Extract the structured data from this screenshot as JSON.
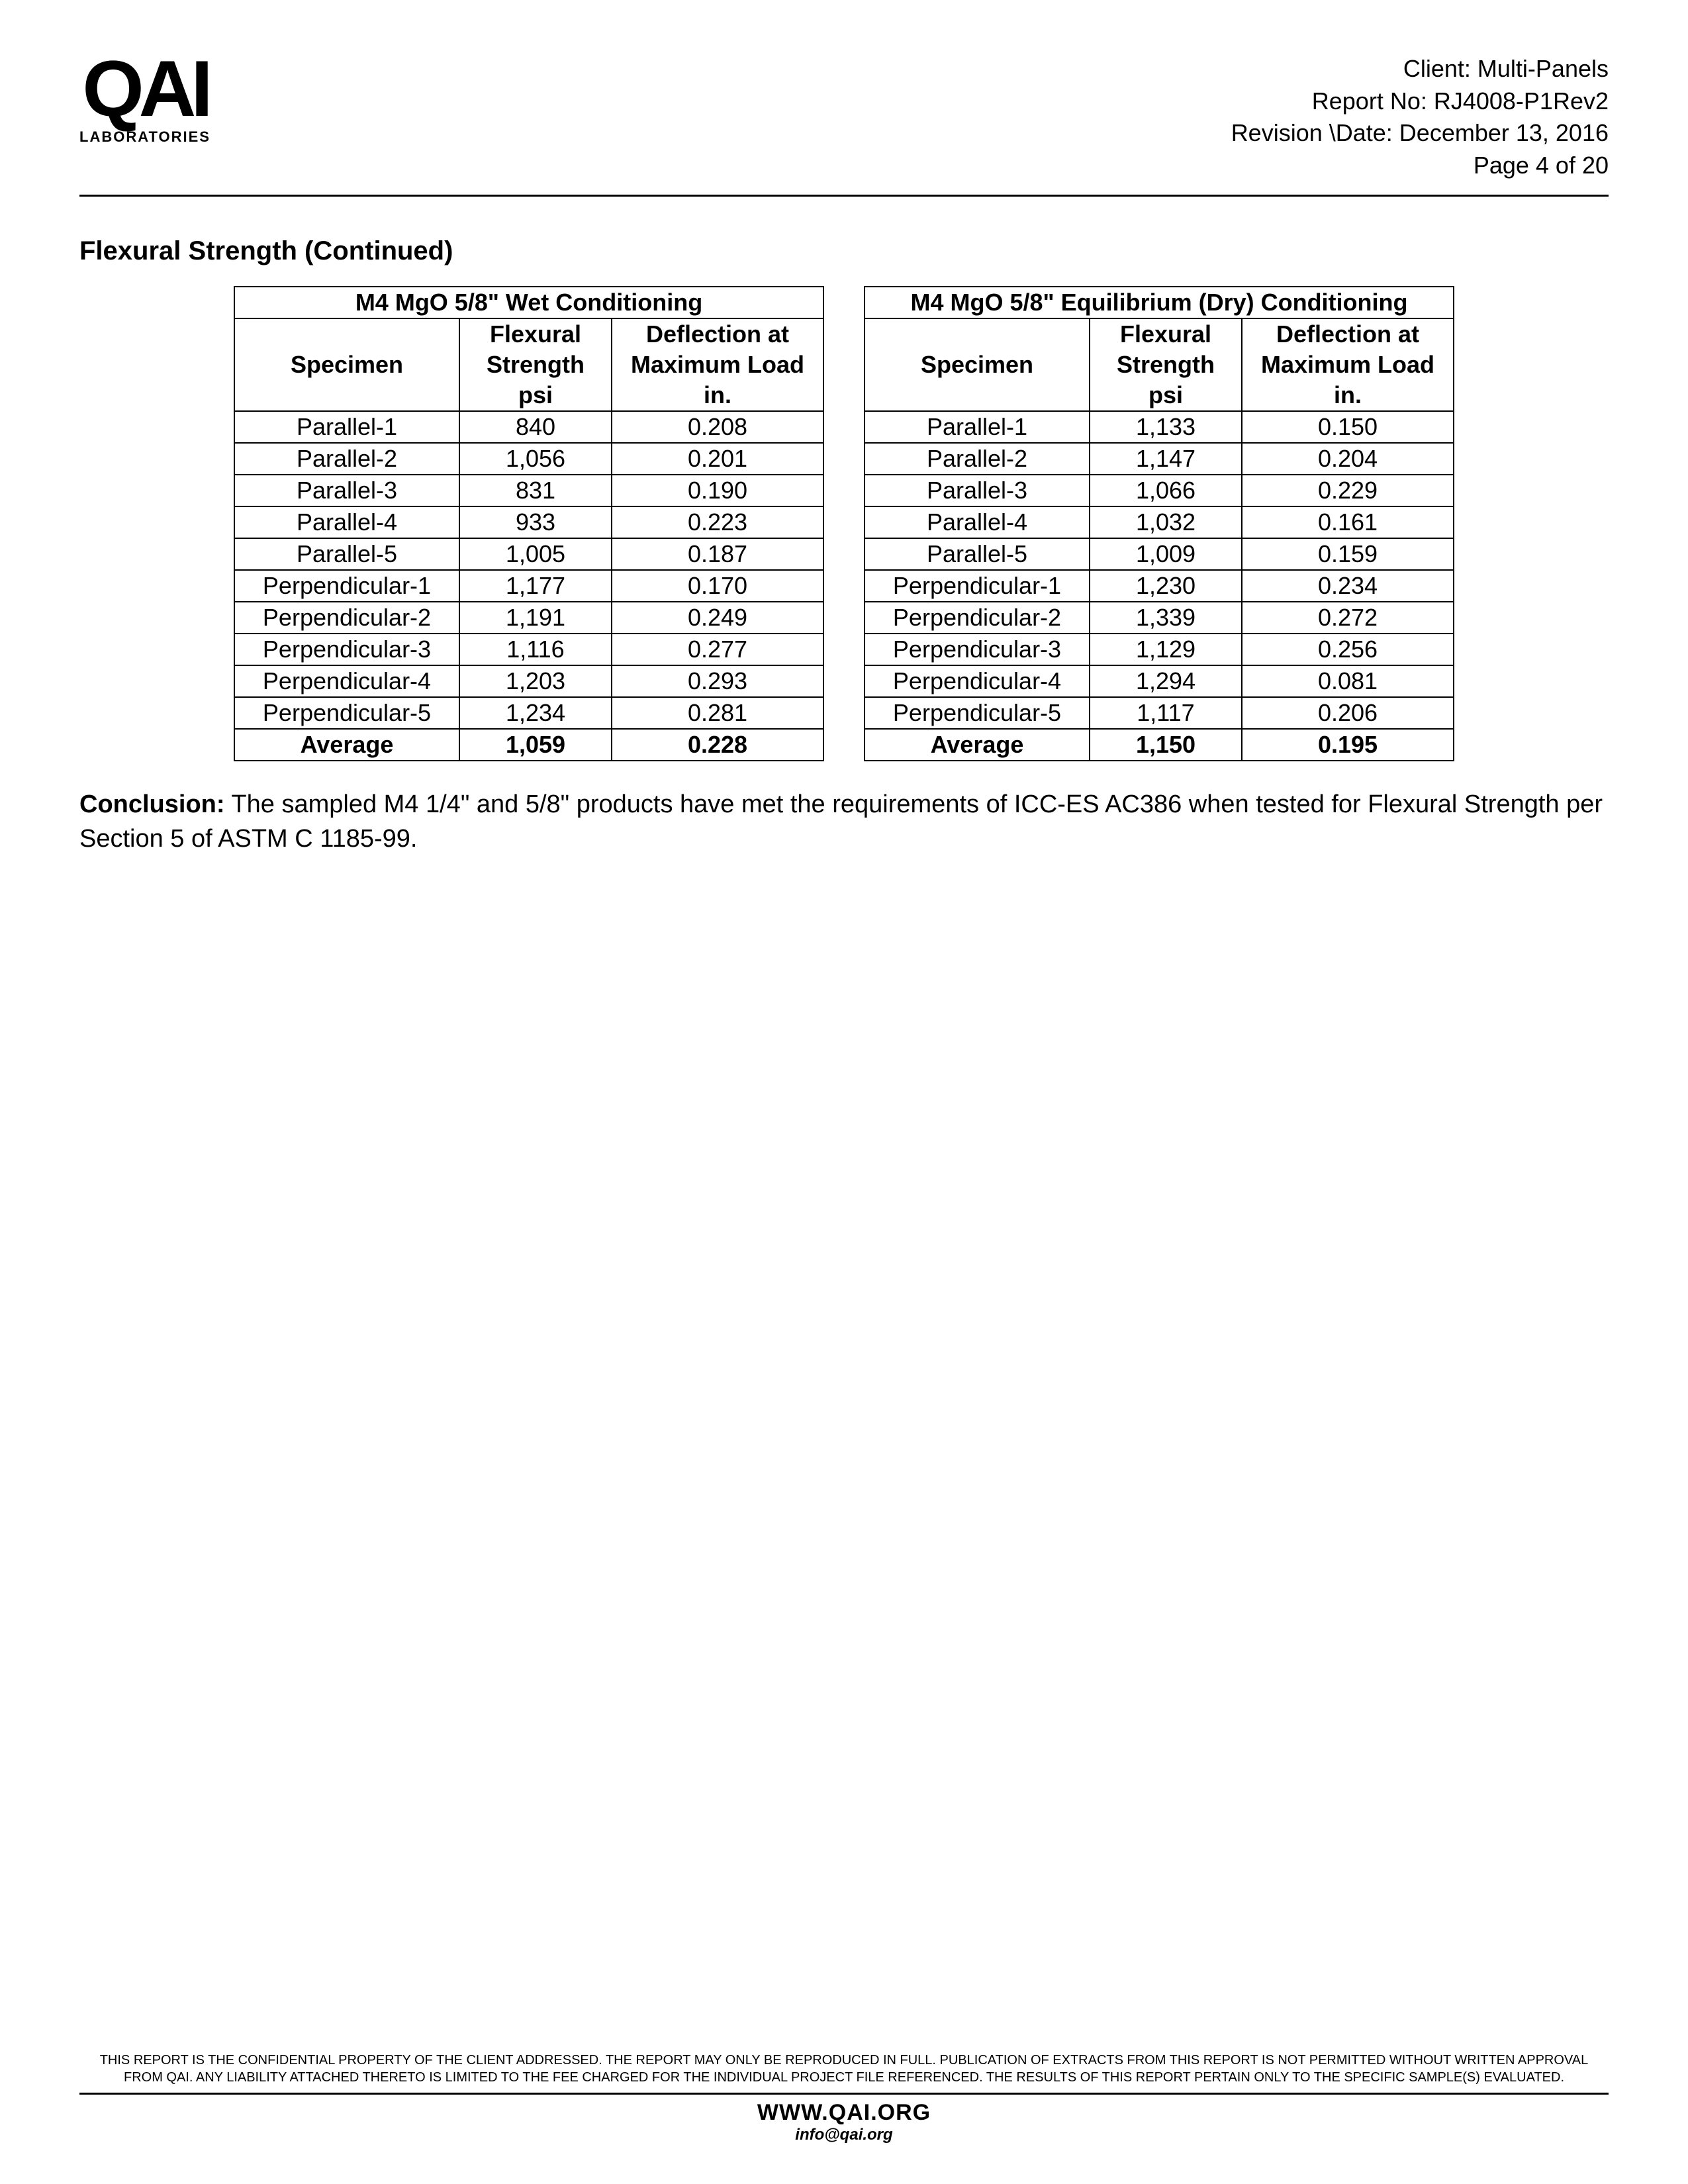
{
  "logo": {
    "main": "QAI",
    "sub": "LABORATORIES"
  },
  "header": {
    "client": "Client: Multi-Panels",
    "report_no": "Report No: RJ4008-P1Rev2",
    "revision_date": "Revision \\Date: December 13, 2016",
    "page": "Page 4 of 20"
  },
  "section_title": "Flexural Strength (Continued)",
  "col_headers": {
    "specimen": "Specimen",
    "flexural_l1": "Flexural",
    "flexural_l2": "Strength",
    "flexural_l3": "psi",
    "deflection_l1": "Deflection at",
    "deflection_l2": "Maximum Load",
    "deflection_l3": "in."
  },
  "table_left": {
    "title": "M4 MgO 5/8\" Wet Conditioning",
    "rows": [
      {
        "specimen": "Parallel-1",
        "strength": "840",
        "deflection": "0.208"
      },
      {
        "specimen": "Parallel-2",
        "strength": "1,056",
        "deflection": "0.201"
      },
      {
        "specimen": "Parallel-3",
        "strength": "831",
        "deflection": "0.190"
      },
      {
        "specimen": "Parallel-4",
        "strength": "933",
        "deflection": "0.223"
      },
      {
        "specimen": "Parallel-5",
        "strength": "1,005",
        "deflection": "0.187"
      },
      {
        "specimen": "Perpendicular-1",
        "strength": "1,177",
        "deflection": "0.170"
      },
      {
        "specimen": "Perpendicular-2",
        "strength": "1,191",
        "deflection": "0.249"
      },
      {
        "specimen": "Perpendicular-3",
        "strength": "1,116",
        "deflection": "0.277"
      },
      {
        "specimen": "Perpendicular-4",
        "strength": "1,203",
        "deflection": "0.293"
      },
      {
        "specimen": "Perpendicular-5",
        "strength": "1,234",
        "deflection": "0.281"
      }
    ],
    "average": {
      "label": "Average",
      "strength": "1,059",
      "deflection": "0.228"
    }
  },
  "table_right": {
    "title": "M4 MgO 5/8\" Equilibrium (Dry) Conditioning",
    "rows": [
      {
        "specimen": "Parallel-1",
        "strength": "1,133",
        "deflection": "0.150"
      },
      {
        "specimen": "Parallel-2",
        "strength": "1,147",
        "deflection": "0.204"
      },
      {
        "specimen": "Parallel-3",
        "strength": "1,066",
        "deflection": "0.229"
      },
      {
        "specimen": "Parallel-4",
        "strength": "1,032",
        "deflection": "0.161"
      },
      {
        "specimen": "Parallel-5",
        "strength": "1,009",
        "deflection": "0.159"
      },
      {
        "specimen": "Perpendicular-1",
        "strength": "1,230",
        "deflection": "0.234"
      },
      {
        "specimen": "Perpendicular-2",
        "strength": "1,339",
        "deflection": "0.272"
      },
      {
        "specimen": "Perpendicular-3",
        "strength": "1,129",
        "deflection": "0.256"
      },
      {
        "specimen": "Perpendicular-4",
        "strength": "1,294",
        "deflection": "0.081"
      },
      {
        "specimen": "Perpendicular-5",
        "strength": "1,117",
        "deflection": "0.206"
      }
    ],
    "average": {
      "label": "Average",
      "strength": "1,150",
      "deflection": "0.195"
    }
  },
  "conclusion": {
    "label": "Conclusion:",
    "text": " The sampled M4 1/4\" and 5/8\" products have met the requirements of ICC-ES AC386 when tested for Flexural Strength per Section 5 of ASTM C 1185-99."
  },
  "footer": {
    "disclaimer": "THIS REPORT IS THE CONFIDENTIAL PROPERTY OF THE CLIENT ADDRESSED. THE REPORT MAY ONLY BE REPRODUCED IN FULL. PUBLICATION OF EXTRACTS FROM THIS REPORT IS NOT PERMITTED WITHOUT WRITTEN APPROVAL FROM QAI. ANY LIABILITY ATTACHED THERETO IS LIMITED TO THE FEE CHARGED FOR THE INDIVIDUAL PROJECT FILE REFERENCED. THE RESULTS OF THIS REPORT PERTAIN ONLY TO THE SPECIFIC SAMPLE(S) EVALUATED.",
    "url": "WWW.QAI.ORG",
    "email": "info@qai.org"
  }
}
